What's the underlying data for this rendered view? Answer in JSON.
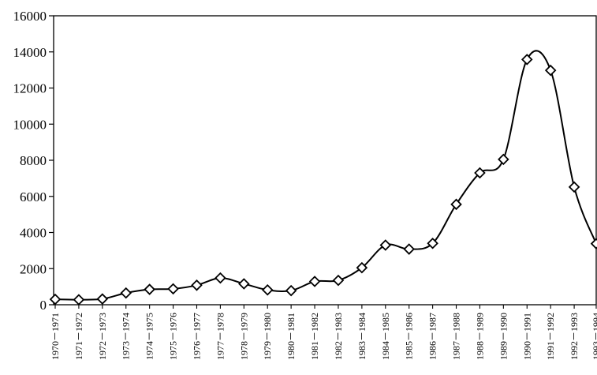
{
  "chart_data": {
    "type": "line",
    "title": "",
    "xlabel": "",
    "ylabel": "",
    "ylim": [
      0,
      16000
    ],
    "yticks": [
      0,
      2000,
      4000,
      6000,
      8000,
      10000,
      12000,
      14000,
      16000
    ],
    "grid": false,
    "legend": "none",
    "smooth": true,
    "marker": "diamond",
    "line_color": "#000000",
    "marker_fill": "#ffffff",
    "categories": [
      "1970－1971",
      "1971－1972",
      "1972－1973",
      "1973－1974",
      "1974－1975",
      "1975－1976",
      "1976－1977",
      "1977－1978",
      "1978－1979",
      "1979－1980",
      "1980－1981",
      "1981－1982",
      "1982－1983",
      "1983－1984",
      "1984－1985",
      "1985－1986",
      "1986－1987",
      "1987－1988",
      "1988－1989",
      "1989－1990",
      "1990－1991",
      "1991－1992",
      "1992－1993",
      "1993－1994"
    ],
    "series": [
      {
        "values": [
          300,
          280,
          320,
          650,
          850,
          880,
          1080,
          1480,
          1160,
          820,
          780,
          1290,
          1350,
          2050,
          3300,
          3080,
          3400,
          5560,
          7300,
          8050,
          13580,
          12980,
          6520,
          3380
        ]
      }
    ]
  }
}
